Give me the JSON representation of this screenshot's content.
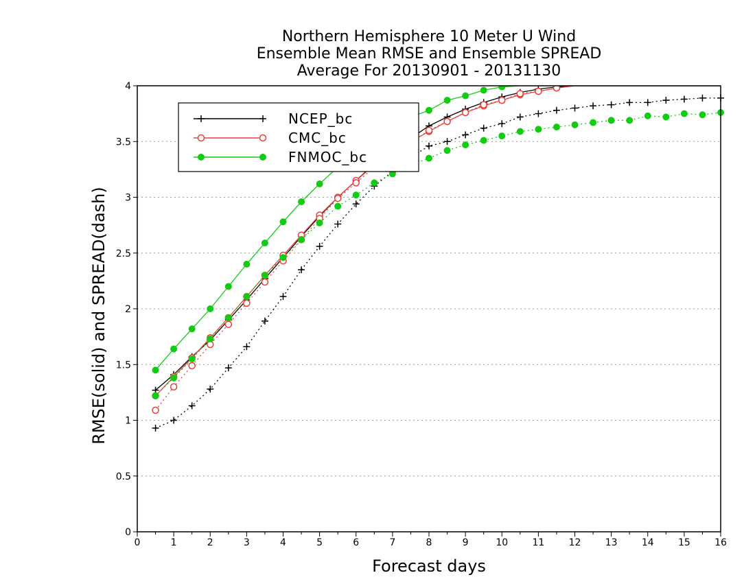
{
  "chart_data": {
    "type": "line",
    "title": [
      "Northern Hemisphere 10 Meter U Wind",
      "Ensemble Mean RMSE and Ensemble SPREAD",
      "Average For 20130901 - 20131130"
    ],
    "xlabel": "Forecast days",
    "ylabel": "RMSE(solid) and SPREAD(dash)",
    "xlim": [
      0,
      16
    ],
    "ylim": [
      0,
      4
    ],
    "x_ticks": [
      0,
      1,
      2,
      3,
      4,
      5,
      6,
      7,
      8,
      9,
      10,
      11,
      12,
      13,
      14,
      15,
      16
    ],
    "y_ticks": [
      0,
      0.5,
      1,
      1.5,
      2,
      2.5,
      3,
      3.5,
      4
    ],
    "y_tick_labels": [
      "0",
      "0.5",
      "1",
      "1.5",
      "2",
      "2.5",
      "3",
      "3.5",
      "4"
    ],
    "grid": "horizontal-dotted",
    "legend_position": "top-left",
    "x": [
      0.5,
      1,
      1.5,
      2,
      2.5,
      3,
      3.5,
      4,
      4.5,
      5,
      5.5,
      6,
      6.5,
      7,
      7.5,
      8,
      8.5,
      9,
      9.5,
      10,
      10.5,
      11,
      11.5,
      12,
      12.5,
      13,
      13.5,
      14,
      14.5,
      15,
      15.5,
      16
    ],
    "series": [
      {
        "name": "NCEP_bc",
        "metric": "RMSE",
        "style": "solid",
        "color": "#000000",
        "marker": "plus",
        "in_legend": true,
        "values": [
          1.27,
          1.41,
          1.57,
          1.72,
          1.9,
          2.08,
          2.27,
          2.46,
          2.65,
          2.83,
          3.0,
          3.15,
          3.3,
          3.42,
          3.53,
          3.64,
          3.72,
          3.79,
          3.85,
          3.9,
          3.94,
          3.97,
          3.99,
          4.0,
          4.0,
          4.0,
          4.0,
          4.0,
          4.0,
          4.0,
          4.0,
          4.0
        ]
      },
      {
        "name": "CMC_bc",
        "metric": "RMSE",
        "style": "solid",
        "color": "#e8413c",
        "marker": "circle-open",
        "in_legend": true,
        "values": [
          1.22,
          1.39,
          1.56,
          1.74,
          1.92,
          2.11,
          2.3,
          2.48,
          2.66,
          2.84,
          3.0,
          3.15,
          3.29,
          3.41,
          3.5,
          3.59,
          3.68,
          3.76,
          3.82,
          3.87,
          3.92,
          3.95,
          3.98,
          4.0,
          4.0,
          4.0,
          4.0,
          4.0,
          4.0,
          4.0,
          4.0,
          4.0
        ]
      },
      {
        "name": "FNMOC_bc",
        "metric": "RMSE",
        "style": "solid",
        "color": "#11cc11",
        "marker": "circle-filled",
        "in_legend": true,
        "values": [
          1.45,
          1.64,
          1.82,
          2.0,
          2.2,
          2.4,
          2.59,
          2.78,
          2.96,
          3.12,
          3.27,
          3.42,
          3.55,
          3.67,
          3.72,
          3.78,
          3.87,
          3.91,
          3.96,
          3.99,
          4.0,
          4.0,
          4.0,
          4.0,
          4.0,
          4.0,
          4.0,
          4.0,
          4.0,
          4.0,
          4.0,
          4.0
        ]
      },
      {
        "name": "NCEP_bc",
        "metric": "SPREAD",
        "style": "dash",
        "color": "#000000",
        "marker": "plus",
        "in_legend": false,
        "values": [
          0.93,
          1.0,
          1.13,
          1.28,
          1.47,
          1.66,
          1.89,
          2.11,
          2.35,
          2.56,
          2.76,
          2.94,
          3.1,
          3.23,
          3.36,
          3.46,
          3.5,
          3.56,
          3.62,
          3.66,
          3.72,
          3.75,
          3.78,
          3.8,
          3.82,
          3.83,
          3.85,
          3.85,
          3.87,
          3.88,
          3.89,
          3.89
        ]
      },
      {
        "name": "CMC_bc",
        "metric": "SPREAD",
        "style": "dash",
        "color": "#e8413c",
        "marker": "circle-open",
        "in_legend": false,
        "values": [
          1.09,
          1.3,
          1.49,
          1.68,
          1.86,
          2.05,
          2.24,
          2.43,
          2.62,
          2.81,
          2.99,
          3.13,
          3.27,
          3.38,
          3.49,
          3.6,
          3.68,
          3.76,
          3.83,
          3.87,
          3.93,
          3.95,
          3.98,
          4.0,
          4.0,
          4.0,
          4.0,
          4.0,
          4.0,
          4.0,
          4.0,
          4.0
        ]
      },
      {
        "name": "FNMOC_bc",
        "metric": "SPREAD",
        "style": "dash",
        "color": "#11cc11",
        "marker": "circle-filled",
        "in_legend": false,
        "values": [
          1.22,
          1.38,
          1.55,
          1.73,
          1.92,
          2.11,
          2.3,
          2.46,
          2.62,
          2.77,
          2.92,
          3.02,
          3.13,
          3.21,
          3.29,
          3.35,
          3.42,
          3.47,
          3.51,
          3.55,
          3.59,
          3.61,
          3.63,
          3.65,
          3.67,
          3.69,
          3.69,
          3.73,
          3.72,
          3.75,
          3.74,
          3.76
        ]
      }
    ]
  }
}
